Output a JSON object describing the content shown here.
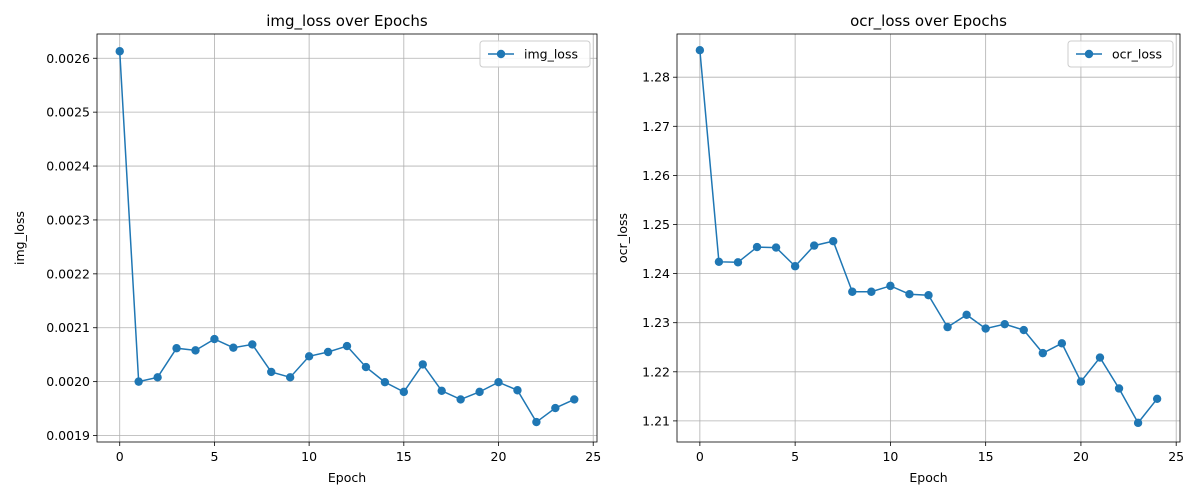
{
  "chart_data": [
    {
      "type": "line",
      "title": "img_loss over Epochs",
      "xlabel": "Epoch",
      "ylabel": "img_loss",
      "xlim": [
        -1.2,
        25.2
      ],
      "ylim": [
        0.001888,
        0.002645
      ],
      "xticks": [
        0,
        5,
        10,
        15,
        20,
        25
      ],
      "xtick_labels": [
        "0",
        "5",
        "10",
        "15",
        "20",
        "25"
      ],
      "yticks": [
        0.0019,
        0.002,
        0.0021,
        0.0022,
        0.0023,
        0.0024,
        0.0025,
        0.0026
      ],
      "ytick_labels": [
        "0.0019",
        "0.0020",
        "0.0021",
        "0.0022",
        "0.0023",
        "0.0024",
        "0.0025",
        "0.0026"
      ],
      "grid": true,
      "legend_position": "top-right",
      "color": "#1f77b4",
      "series": [
        {
          "name": "img_loss",
          "x": [
            0,
            1,
            2,
            3,
            4,
            5,
            6,
            7,
            8,
            9,
            10,
            11,
            12,
            13,
            14,
            15,
            16,
            17,
            18,
            19,
            20,
            21,
            22,
            23,
            24
          ],
          "y": [
            0.002613,
            0.002,
            0.002008,
            0.002062,
            0.002058,
            0.002079,
            0.002063,
            0.002069,
            0.002018,
            0.002008,
            0.002047,
            0.002055,
            0.002066,
            0.002027,
            0.001999,
            0.001981,
            0.002032,
            0.001983,
            0.001967,
            0.001981,
            0.001999,
            0.001984,
            0.001925,
            0.001951,
            0.001967
          ]
        }
      ]
    },
    {
      "type": "line",
      "title": "ocr_loss over Epochs",
      "xlabel": "Epoch",
      "ylabel": "ocr_loss",
      "xlim": [
        -1.2,
        25.2
      ],
      "ylim": [
        1.2057,
        1.2888
      ],
      "xticks": [
        0,
        5,
        10,
        15,
        20,
        25
      ],
      "xtick_labels": [
        "0",
        "5",
        "10",
        "15",
        "20",
        "25"
      ],
      "yticks": [
        1.21,
        1.22,
        1.23,
        1.24,
        1.25,
        1.26,
        1.27,
        1.28
      ],
      "ytick_labels": [
        "1.21",
        "1.22",
        "1.23",
        "1.24",
        "1.25",
        "1.26",
        "1.27",
        "1.28"
      ],
      "grid": true,
      "legend_position": "top-right",
      "color": "#1f77b4",
      "series": [
        {
          "name": "ocr_loss",
          "x": [
            0,
            1,
            2,
            3,
            4,
            5,
            6,
            7,
            8,
            9,
            10,
            11,
            12,
            13,
            14,
            15,
            16,
            17,
            18,
            19,
            20,
            21,
            22,
            23,
            24
          ],
          "y": [
            1.2855,
            1.2424,
            1.2423,
            1.2454,
            1.2453,
            1.2415,
            1.2457,
            1.2466,
            1.2363,
            1.2363,
            1.2375,
            1.2358,
            1.2356,
            1.2291,
            1.2316,
            1.2288,
            1.2297,
            1.2285,
            1.2238,
            1.2258,
            1.218,
            1.2229,
            1.2166,
            1.2096,
            1.2145
          ]
        }
      ]
    }
  ]
}
